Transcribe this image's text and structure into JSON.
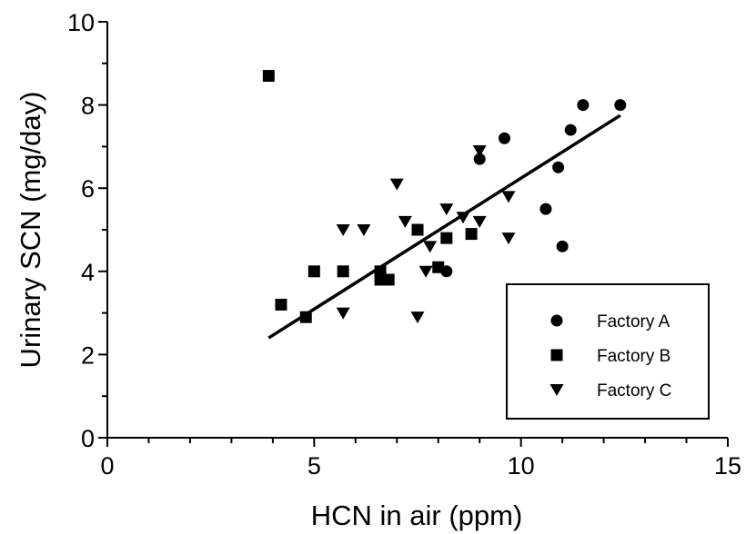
{
  "chart_data": {
    "type": "scatter",
    "xlabel": "HCN in air (ppm)",
    "ylabel": "Urinary SCN (mg/day)",
    "xlim": [
      0,
      15
    ],
    "ylim": [
      0,
      10
    ],
    "x_ticks": [
      0,
      5,
      10,
      15
    ],
    "y_ticks": [
      0,
      2,
      4,
      6,
      8,
      10
    ],
    "x_tick_labels": [
      "0",
      "5",
      "10",
      "15"
    ],
    "y_tick_labels": [
      "0",
      "2",
      "4",
      "6",
      "8",
      "10"
    ],
    "grid": false,
    "legend_position": "bottom-right",
    "series": [
      {
        "name": "Factory A",
        "marker": "circle",
        "color": "#000000",
        "points": [
          [
            8.2,
            4.0
          ],
          [
            9.0,
            6.7
          ],
          [
            9.6,
            7.2
          ],
          [
            10.6,
            5.5
          ],
          [
            10.9,
            6.5
          ],
          [
            11.0,
            4.6
          ],
          [
            11.2,
            7.4
          ],
          [
            11.5,
            8.0
          ],
          [
            12.4,
            8.0
          ]
        ]
      },
      {
        "name": "Factory B",
        "marker": "square",
        "color": "#000000",
        "points": [
          [
            3.9,
            8.7
          ],
          [
            4.2,
            3.2
          ],
          [
            4.8,
            2.9
          ],
          [
            5.0,
            4.0
          ],
          [
            5.7,
            4.0
          ],
          [
            6.6,
            4.0
          ],
          [
            6.6,
            3.8
          ],
          [
            6.8,
            3.8
          ],
          [
            7.5,
            5.0
          ],
          [
            8.0,
            4.1
          ],
          [
            8.2,
            4.8
          ],
          [
            8.8,
            4.9
          ]
        ]
      },
      {
        "name": "Factory C",
        "marker": "triangle-down",
        "color": "#000000",
        "points": [
          [
            5.7,
            5.0
          ],
          [
            5.7,
            3.0
          ],
          [
            6.2,
            5.0
          ],
          [
            7.0,
            6.1
          ],
          [
            7.2,
            5.2
          ],
          [
            7.5,
            2.9
          ],
          [
            7.7,
            4.0
          ],
          [
            7.8,
            4.6
          ],
          [
            8.2,
            5.5
          ],
          [
            8.6,
            5.3
          ],
          [
            9.0,
            6.9
          ],
          [
            9.0,
            5.2
          ],
          [
            9.7,
            5.8
          ],
          [
            9.7,
            4.8
          ]
        ]
      }
    ],
    "regression_line": {
      "x": [
        3.9,
        12.4
      ],
      "y": [
        2.4,
        7.75
      ]
    }
  }
}
